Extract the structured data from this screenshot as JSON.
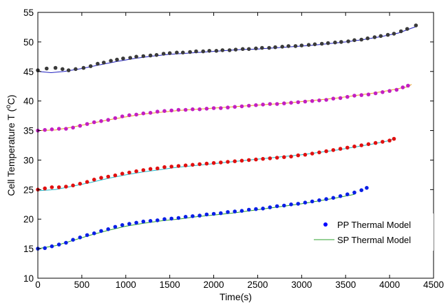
{
  "chart_data": {
    "type": "scatter",
    "xlabel": "Time(s)",
    "ylabel_main": "Cell Temperature T (",
    "ylabel_sup": "o",
    "ylabel_tail": "C)",
    "xlim": [
      0,
      4500
    ],
    "ylim": [
      10,
      55
    ],
    "xticks": [
      0,
      500,
      1000,
      1500,
      2000,
      2500,
      3000,
      3500,
      4000,
      4500
    ],
    "yticks": [
      10,
      15,
      20,
      25,
      30,
      35,
      40,
      45,
      50,
      55
    ],
    "grid": false,
    "legend": {
      "position": "bottom-right",
      "entries": [
        {
          "label": "PP Thermal Model",
          "marker": "dot",
          "color": "#0000ff"
        },
        {
          "label": "SP Thermal Model",
          "marker": "line",
          "color": "#2ca02c"
        }
      ]
    },
    "series": [
      {
        "group": "45C",
        "pp_color": "#3a3a3a",
        "sp_color": "#1f1fbf",
        "pp_points": [
          [
            0,
            45.2
          ],
          [
            100,
            45.5
          ],
          [
            200,
            45.6
          ],
          [
            280,
            45.4
          ],
          [
            350,
            45.2
          ],
          [
            430,
            45.4
          ],
          [
            520,
            45.6
          ],
          [
            600,
            45.9
          ],
          [
            680,
            46.3
          ],
          [
            750,
            46.5
          ],
          [
            830,
            46.8
          ],
          [
            900,
            47.0
          ],
          [
            970,
            47.2
          ],
          [
            1050,
            47.3
          ],
          [
            1120,
            47.5
          ],
          [
            1200,
            47.6
          ],
          [
            1280,
            47.7
          ],
          [
            1350,
            47.8
          ],
          [
            1430,
            48.0
          ],
          [
            1500,
            48.1
          ],
          [
            1580,
            48.2
          ],
          [
            1650,
            48.2
          ],
          [
            1730,
            48.3
          ],
          [
            1800,
            48.4
          ],
          [
            1880,
            48.4
          ],
          [
            1950,
            48.5
          ],
          [
            2030,
            48.5
          ],
          [
            2100,
            48.6
          ],
          [
            2180,
            48.6
          ],
          [
            2250,
            48.7
          ],
          [
            2330,
            48.8
          ],
          [
            2400,
            48.8
          ],
          [
            2480,
            48.9
          ],
          [
            2550,
            49.0
          ],
          [
            2630,
            49.0
          ],
          [
            2700,
            49.1
          ],
          [
            2780,
            49.2
          ],
          [
            2850,
            49.3
          ],
          [
            2930,
            49.3
          ],
          [
            3000,
            49.4
          ],
          [
            3080,
            49.5
          ],
          [
            3150,
            49.6
          ],
          [
            3230,
            49.7
          ],
          [
            3300,
            49.8
          ],
          [
            3380,
            49.9
          ],
          [
            3450,
            50.0
          ],
          [
            3530,
            50.1
          ],
          [
            3600,
            50.3
          ],
          [
            3680,
            50.4
          ],
          [
            3750,
            50.6
          ],
          [
            3830,
            50.8
          ],
          [
            3900,
            51.0
          ],
          [
            3980,
            51.2
          ],
          [
            4050,
            51.4
          ],
          [
            4130,
            51.8
          ],
          [
            4200,
            52.2
          ],
          [
            4300,
            52.8
          ]
        ],
        "sp_points": [
          [
            0,
            45.0
          ],
          [
            150,
            44.8
          ],
          [
            300,
            45.0
          ],
          [
            500,
            45.5
          ],
          [
            700,
            46.1
          ],
          [
            900,
            46.7
          ],
          [
            1100,
            47.2
          ],
          [
            1300,
            47.6
          ],
          [
            1500,
            47.9
          ],
          [
            1700,
            48.1
          ],
          [
            1900,
            48.3
          ],
          [
            2100,
            48.5
          ],
          [
            2300,
            48.7
          ],
          [
            2500,
            48.8
          ],
          [
            2700,
            49.0
          ],
          [
            2900,
            49.2
          ],
          [
            3100,
            49.4
          ],
          [
            3300,
            49.7
          ],
          [
            3500,
            50.0
          ],
          [
            3700,
            50.4
          ],
          [
            3900,
            50.9
          ],
          [
            4100,
            51.5
          ],
          [
            4300,
            52.6
          ]
        ]
      },
      {
        "group": "35C",
        "pp_color": "#c21fc2",
        "sp_color": "#e8a020",
        "pp_points": [
          [
            0,
            35.0
          ],
          [
            80,
            35.1
          ],
          [
            160,
            35.2
          ],
          [
            240,
            35.3
          ],
          [
            320,
            35.3
          ],
          [
            400,
            35.5
          ],
          [
            480,
            35.8
          ],
          [
            560,
            36.1
          ],
          [
            640,
            36.4
          ],
          [
            720,
            36.6
          ],
          [
            800,
            36.8
          ],
          [
            880,
            37.1
          ],
          [
            960,
            37.4
          ],
          [
            1040,
            37.6
          ],
          [
            1120,
            37.7
          ],
          [
            1200,
            37.9
          ],
          [
            1280,
            38.0
          ],
          [
            1360,
            38.2
          ],
          [
            1440,
            38.3
          ],
          [
            1520,
            38.4
          ],
          [
            1600,
            38.5
          ],
          [
            1680,
            38.5
          ],
          [
            1760,
            38.6
          ],
          [
            1840,
            38.6
          ],
          [
            1920,
            38.7
          ],
          [
            2000,
            38.8
          ],
          [
            2080,
            38.8
          ],
          [
            2160,
            38.9
          ],
          [
            2240,
            39.0
          ],
          [
            2320,
            39.1
          ],
          [
            2400,
            39.2
          ],
          [
            2480,
            39.3
          ],
          [
            2560,
            39.4
          ],
          [
            2640,
            39.5
          ],
          [
            2720,
            39.5
          ],
          [
            2800,
            39.6
          ],
          [
            2880,
            39.7
          ],
          [
            2960,
            39.8
          ],
          [
            3040,
            39.9
          ],
          [
            3120,
            40.0
          ],
          [
            3200,
            40.1
          ],
          [
            3280,
            40.2
          ],
          [
            3360,
            40.4
          ],
          [
            3440,
            40.5
          ],
          [
            3520,
            40.7
          ],
          [
            3600,
            40.9
          ],
          [
            3680,
            41.0
          ],
          [
            3760,
            41.1
          ],
          [
            3840,
            41.3
          ],
          [
            3920,
            41.5
          ],
          [
            4000,
            41.7
          ],
          [
            4080,
            41.9
          ],
          [
            4150,
            42.3
          ],
          [
            4210,
            42.6
          ]
        ],
        "sp_points": [
          [
            0,
            35.0
          ],
          [
            200,
            35.1
          ],
          [
            400,
            35.6
          ],
          [
            600,
            36.2
          ],
          [
            800,
            36.8
          ],
          [
            1000,
            37.3
          ],
          [
            1200,
            37.8
          ],
          [
            1400,
            38.1
          ],
          [
            1600,
            38.4
          ],
          [
            1800,
            38.6
          ],
          [
            2000,
            38.8
          ],
          [
            2200,
            39.0
          ],
          [
            2400,
            39.2
          ],
          [
            2600,
            39.4
          ],
          [
            2800,
            39.6
          ],
          [
            3000,
            39.9
          ],
          [
            3200,
            40.2
          ],
          [
            3400,
            40.5
          ],
          [
            3600,
            40.9
          ],
          [
            3800,
            41.3
          ],
          [
            4000,
            41.8
          ],
          [
            4200,
            42.4
          ],
          [
            4250,
            42.8
          ]
        ]
      },
      {
        "group": "25C",
        "pp_color": "#e01010",
        "sp_color": "#20b8c8",
        "pp_points": [
          [
            0,
            25.0
          ],
          [
            80,
            25.2
          ],
          [
            160,
            25.4
          ],
          [
            240,
            25.4
          ],
          [
            320,
            25.5
          ],
          [
            400,
            25.7
          ],
          [
            480,
            26.0
          ],
          [
            560,
            26.3
          ],
          [
            640,
            26.7
          ],
          [
            720,
            27.0
          ],
          [
            800,
            27.2
          ],
          [
            880,
            27.4
          ],
          [
            960,
            27.7
          ],
          [
            1040,
            27.9
          ],
          [
            1120,
            28.1
          ],
          [
            1200,
            28.3
          ],
          [
            1280,
            28.5
          ],
          [
            1360,
            28.6
          ],
          [
            1440,
            28.8
          ],
          [
            1520,
            28.9
          ],
          [
            1600,
            29.0
          ],
          [
            1680,
            29.1
          ],
          [
            1760,
            29.2
          ],
          [
            1840,
            29.3
          ],
          [
            1920,
            29.4
          ],
          [
            2000,
            29.5
          ],
          [
            2080,
            29.6
          ],
          [
            2160,
            29.7
          ],
          [
            2240,
            29.8
          ],
          [
            2320,
            29.9
          ],
          [
            2400,
            30.0
          ],
          [
            2480,
            30.1
          ],
          [
            2560,
            30.2
          ],
          [
            2640,
            30.3
          ],
          [
            2720,
            30.4
          ],
          [
            2800,
            30.5
          ],
          [
            2880,
            30.6
          ],
          [
            2960,
            30.8
          ],
          [
            3040,
            30.9
          ],
          [
            3120,
            31.1
          ],
          [
            3200,
            31.3
          ],
          [
            3280,
            31.5
          ],
          [
            3360,
            31.7
          ],
          [
            3440,
            31.9
          ],
          [
            3520,
            32.1
          ],
          [
            3600,
            32.3
          ],
          [
            3680,
            32.5
          ],
          [
            3760,
            32.7
          ],
          [
            3840,
            32.9
          ],
          [
            3920,
            33.1
          ],
          [
            4000,
            33.3
          ],
          [
            4050,
            33.6
          ]
        ],
        "sp_points": [
          [
            0,
            24.8
          ],
          [
            200,
            25.0
          ],
          [
            400,
            25.6
          ],
          [
            600,
            26.2
          ],
          [
            800,
            26.9
          ],
          [
            1000,
            27.5
          ],
          [
            1200,
            28.0
          ],
          [
            1400,
            28.4
          ],
          [
            1600,
            28.8
          ],
          [
            1800,
            29.1
          ],
          [
            2000,
            29.4
          ],
          [
            2200,
            29.7
          ],
          [
            2400,
            30.0
          ],
          [
            2600,
            30.3
          ],
          [
            2800,
            30.6
          ],
          [
            3000,
            30.9
          ],
          [
            3200,
            31.3
          ],
          [
            3400,
            31.7
          ],
          [
            3600,
            32.2
          ],
          [
            3800,
            32.7
          ],
          [
            4000,
            33.3
          ],
          [
            4050,
            33.7
          ]
        ]
      },
      {
        "group": "15C",
        "pp_color": "#0a1fe6",
        "sp_color": "#2ca02c",
        "pp_points": [
          [
            0,
            15.0
          ],
          [
            80,
            15.1
          ],
          [
            160,
            15.4
          ],
          [
            240,
            15.7
          ],
          [
            320,
            16.0
          ],
          [
            400,
            16.5
          ],
          [
            480,
            16.9
          ],
          [
            560,
            17.3
          ],
          [
            640,
            17.6
          ],
          [
            720,
            18.0
          ],
          [
            800,
            18.3
          ],
          [
            880,
            18.7
          ],
          [
            960,
            19.0
          ],
          [
            1040,
            19.2
          ],
          [
            1120,
            19.4
          ],
          [
            1200,
            19.6
          ],
          [
            1280,
            19.7
          ],
          [
            1360,
            19.8
          ],
          [
            1440,
            20.0
          ],
          [
            1520,
            20.1
          ],
          [
            1600,
            20.2
          ],
          [
            1680,
            20.4
          ],
          [
            1760,
            20.5
          ],
          [
            1840,
            20.6
          ],
          [
            1920,
            20.8
          ],
          [
            2000,
            20.9
          ],
          [
            2080,
            21.0
          ],
          [
            2160,
            21.2
          ],
          [
            2240,
            21.3
          ],
          [
            2320,
            21.4
          ],
          [
            2400,
            21.6
          ],
          [
            2480,
            21.7
          ],
          [
            2560,
            21.8
          ],
          [
            2640,
            22.0
          ],
          [
            2720,
            22.2
          ],
          [
            2800,
            22.3
          ],
          [
            2880,
            22.5
          ],
          [
            2960,
            22.6
          ],
          [
            3040,
            22.8
          ],
          [
            3120,
            23.0
          ],
          [
            3200,
            23.2
          ],
          [
            3280,
            23.4
          ],
          [
            3360,
            23.6
          ],
          [
            3440,
            23.9
          ],
          [
            3520,
            24.2
          ],
          [
            3600,
            24.5
          ],
          [
            3680,
            24.9
          ],
          [
            3740,
            25.3
          ]
        ],
        "sp_points": [
          [
            0,
            15.0
          ],
          [
            200,
            15.5
          ],
          [
            400,
            16.4
          ],
          [
            600,
            17.3
          ],
          [
            800,
            18.1
          ],
          [
            1000,
            18.8
          ],
          [
            1200,
            19.3
          ],
          [
            1400,
            19.7
          ],
          [
            1600,
            20.0
          ],
          [
            1800,
            20.4
          ],
          [
            2000,
            20.7
          ],
          [
            2200,
            21.0
          ],
          [
            2400,
            21.4
          ],
          [
            2600,
            21.8
          ],
          [
            2800,
            22.2
          ],
          [
            3000,
            22.6
          ],
          [
            3200,
            23.1
          ],
          [
            3400,
            23.6
          ],
          [
            3600,
            24.2
          ]
        ]
      }
    ]
  }
}
